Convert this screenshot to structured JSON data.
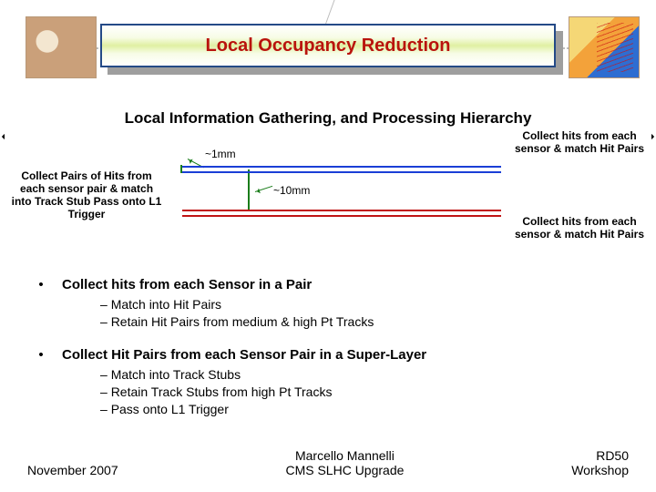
{
  "title": "Local Occupancy Reduction",
  "subtitle": "Local Information Gathering, and Processing Hierarchy",
  "diagram": {
    "dim_1mm": "~1mm",
    "dim_10mm": "~10mm",
    "left_label": "Collect Pairs of Hits from each sensor pair & match into Track Stub Pass onto L1 Trigger",
    "right_label_a": "Collect hits from each sensor & match Hit Pairs",
    "right_label_b": "Collect hits from each sensor & match Hit Pairs",
    "top_pair_color": "#1a3fd6",
    "bottom_pair_color": "#c01414",
    "bracket_color": "#1a7d1a"
  },
  "bullets": {
    "b1": "Collect hits from each Sensor in a Pair",
    "b1_sub1": "Match into Hit Pairs",
    "b1_sub2": "Retain Hit Pairs from medium & high Pt Tracks",
    "b2": "Collect Hit Pairs from each Sensor Pair in a Super-Layer",
    "b2_sub1": "Match into Track Stubs",
    "b2_sub2": "Retain Track Stubs from high Pt Tracks",
    "b2_sub3": "Pass onto L1 Trigger"
  },
  "footer": {
    "left": "November 2007",
    "mid1": "Marcello Mannelli",
    "mid2": "CMS SLHC Upgrade",
    "right1": "RD50",
    "right2": "Workshop"
  }
}
